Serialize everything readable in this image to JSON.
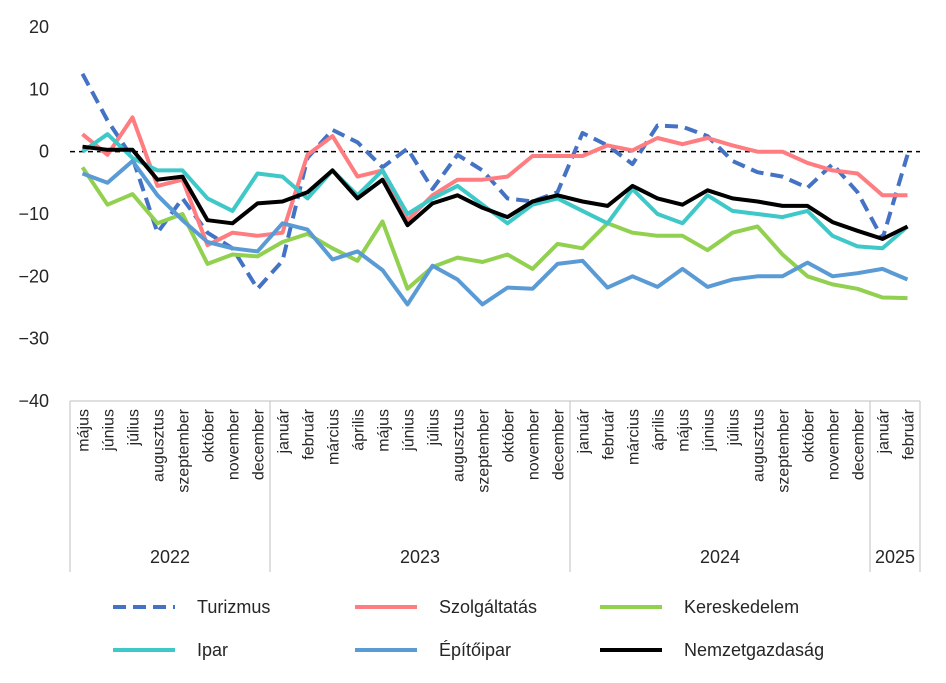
{
  "chart_data": {
    "type": "line",
    "title": "",
    "xlabel": "",
    "ylabel": "",
    "ylim": [
      -40,
      20
    ],
    "yticks": [
      20,
      10,
      0,
      -10,
      -20,
      -30,
      -40
    ],
    "categories": [
      "május",
      "június",
      "július",
      "augusztus",
      "szeptember",
      "október",
      "november",
      "december",
      "január",
      "február",
      "március",
      "április",
      "május",
      "június",
      "július",
      "augusztus",
      "szeptember",
      "október",
      "november",
      "december",
      "január",
      "február",
      "március",
      "április",
      "május",
      "június",
      "július",
      "augusztus",
      "szeptember",
      "október",
      "november",
      "december",
      "január",
      "február"
    ],
    "year_groups": [
      {
        "label": "2022",
        "start": 0,
        "end": 7
      },
      {
        "label": "2023",
        "start": 8,
        "end": 19
      },
      {
        "label": "2024",
        "start": 20,
        "end": 31
      },
      {
        "label": "2025",
        "start": 32,
        "end": 33
      }
    ],
    "series": [
      {
        "name": "Turizmus",
        "color": "#4472c4",
        "dash": "dashed",
        "values": [
          12.5,
          5,
          -1,
          -13,
          -7.5,
          -13,
          -15.5,
          -22,
          -17.5,
          -1,
          3.5,
          1.5,
          -2.5,
          0.5,
          -6,
          -0.5,
          -3,
          -7.5,
          -8,
          -6.5,
          3,
          1,
          -2,
          4.2,
          4,
          2.5,
          -1.5,
          -3.3,
          -4,
          -5.8,
          -2,
          -6.5,
          -14,
          -0.5
        ]
      },
      {
        "name": "Szolgáltatás",
        "color": "#ff7c80",
        "dash": "solid",
        "values": [
          2.8,
          -0.5,
          5.5,
          -5.5,
          -4.5,
          -15,
          -13,
          -13.5,
          -13,
          -0.5,
          2.5,
          -4,
          -3,
          -11,
          -7,
          -4.5,
          -4.5,
          -4,
          -0.7,
          -0.7,
          -0.7,
          1,
          0.2,
          2.2,
          1.2,
          2.2,
          1,
          0,
          0,
          -1.8,
          -3,
          -3.5,
          -7,
          -7
        ]
      },
      {
        "name": "Kereskedelem",
        "color": "#92d050",
        "dash": "solid",
        "values": [
          -2.5,
          -8.5,
          -6.8,
          -11.5,
          -10,
          -18,
          -16.5,
          -16.8,
          -14.5,
          -13.2,
          -15.5,
          -17.5,
          -11.2,
          -22,
          -18.5,
          -17,
          -17.7,
          -16.5,
          -18.8,
          -14.8,
          -15.5,
          -11.5,
          -13,
          -13.5,
          -13.5,
          -15.8,
          -13,
          -12,
          -16.5,
          -20,
          -21.3,
          -22,
          -23.4,
          -23.5
        ]
      },
      {
        "name": "Ipar",
        "color": "#3ec8c8",
        "dash": "solid",
        "values": [
          0,
          2.8,
          -1,
          -3,
          -3,
          -7.5,
          -9.5,
          -3.5,
          -4,
          -7.5,
          -3,
          -7,
          -3,
          -10,
          -7.5,
          -5.5,
          -8.5,
          -11.5,
          -8.5,
          -7.5,
          -9.5,
          -11.5,
          -6,
          -10,
          -11.5,
          -7,
          -9.5,
          -10,
          -10.5,
          -9.5,
          -13.5,
          -15.2,
          -15.5,
          -12
        ]
      },
      {
        "name": "Építőipar",
        "color": "#5b9bd5",
        "dash": "solid",
        "values": [
          -3.5,
          -5,
          -1.5,
          -7,
          -11,
          -14.5,
          -15.5,
          -16,
          -11.5,
          -12.5,
          -17.3,
          -16,
          -19,
          -24.5,
          -18.3,
          -20.5,
          -24.5,
          -21.8,
          -22,
          -18,
          -17.5,
          -21.8,
          -20,
          -21.7,
          -18.8,
          -21.7,
          -20.5,
          -20,
          -20,
          -17.8,
          -20,
          -19.5,
          -18.8,
          -20.5
        ]
      },
      {
        "name": "Nemzetgazdaság",
        "color": "#000000",
        "dash": "solid",
        "values": [
          0.8,
          0.3,
          0.3,
          -4.5,
          -4,
          -11,
          -11.5,
          -8.3,
          -8,
          -6.5,
          -3,
          -7.5,
          -4.5,
          -11.8,
          -8.3,
          -7,
          -9,
          -10.5,
          -8,
          -7,
          -8,
          -8.7,
          -5.5,
          -7.5,
          -8.5,
          -6.2,
          -7.5,
          -8,
          -8.7,
          -8.7,
          -11.3,
          -12.7,
          -14,
          -12
        ]
      }
    ]
  }
}
